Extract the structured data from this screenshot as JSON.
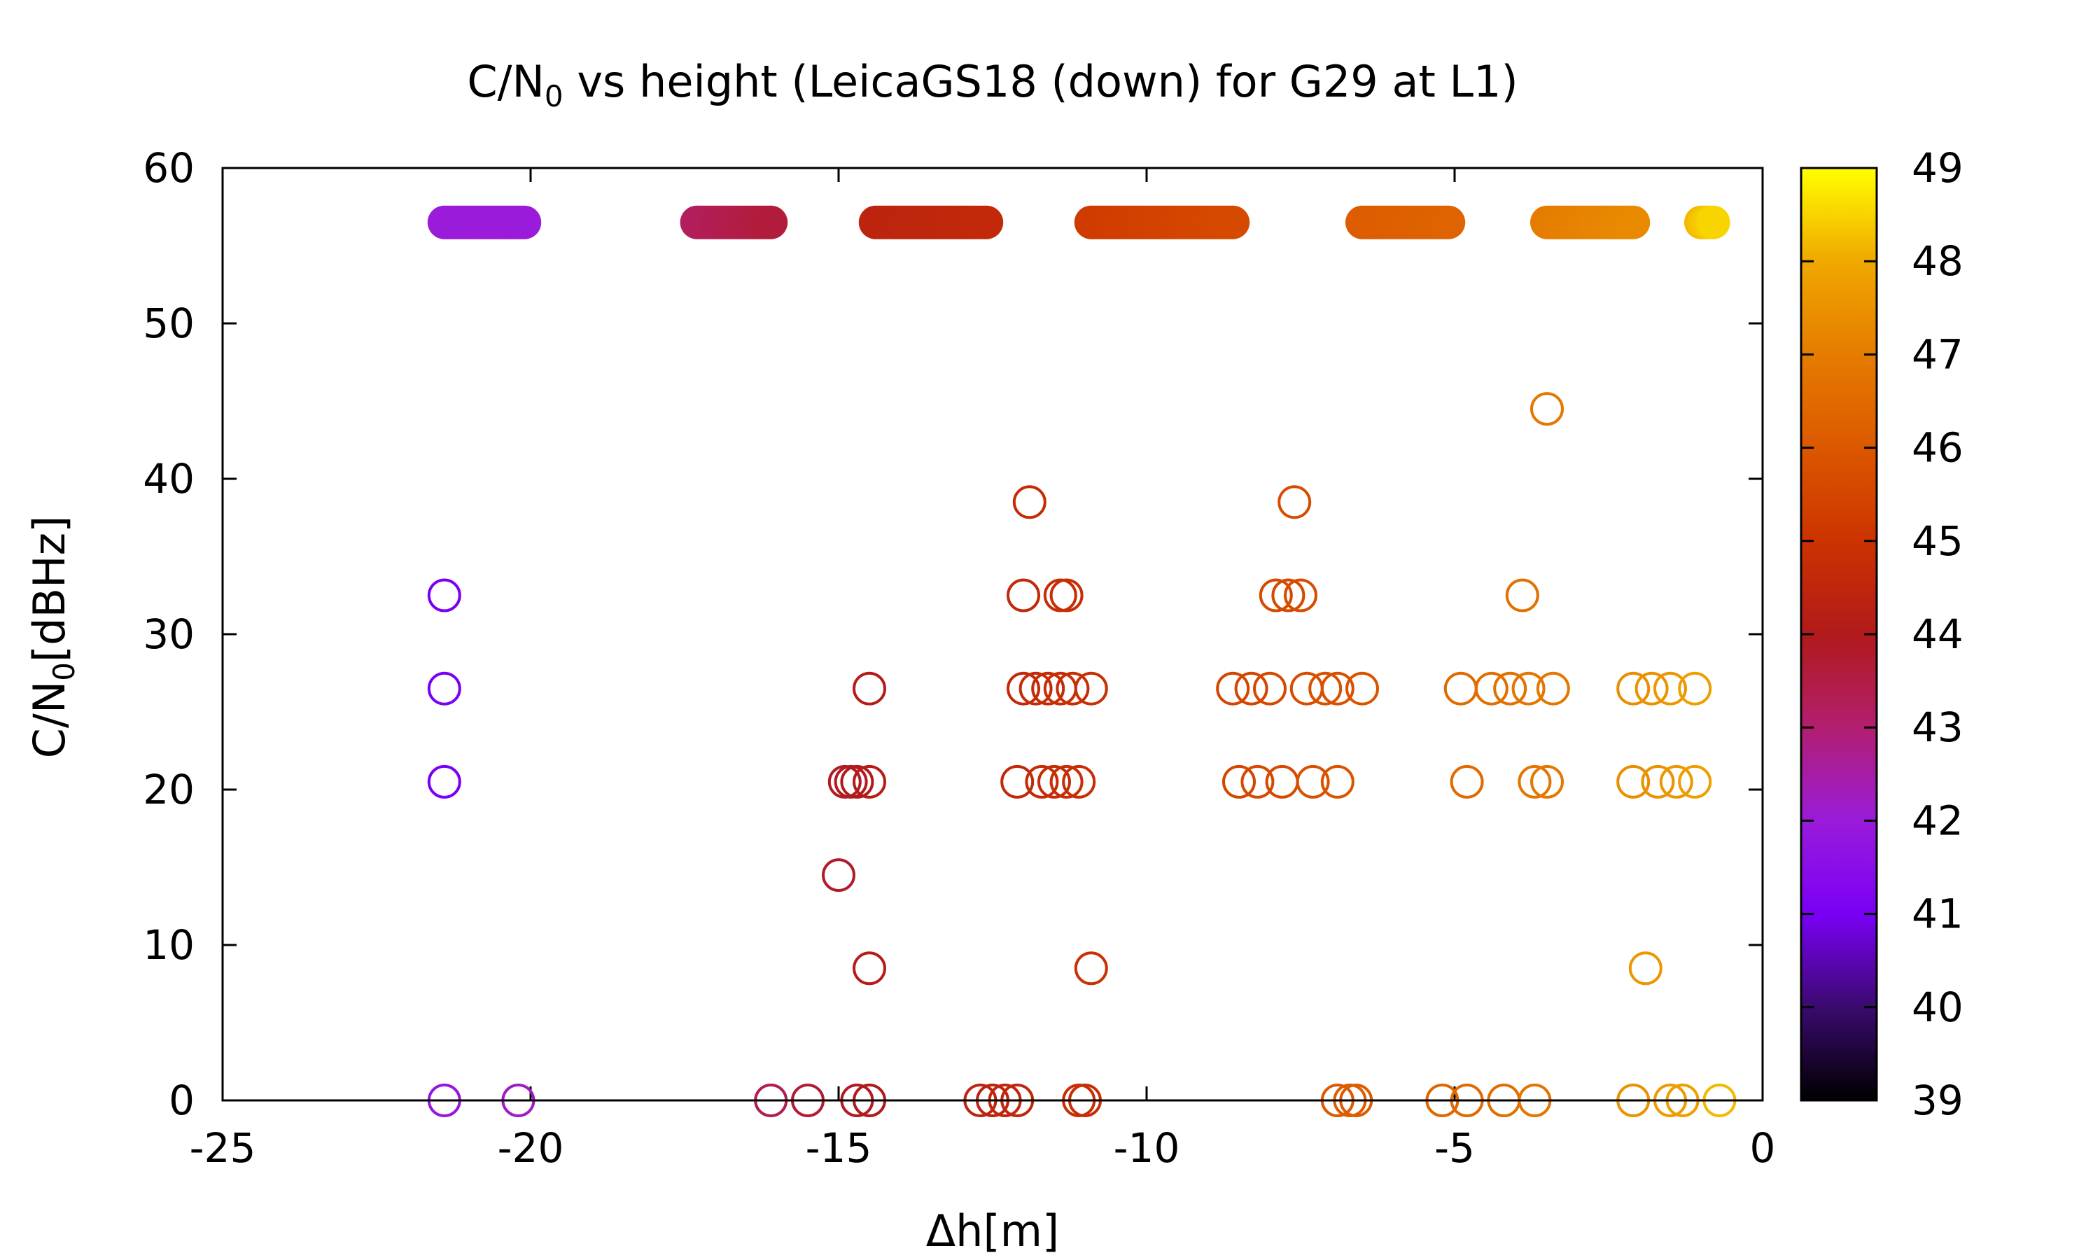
{
  "chart_data": {
    "type": "scatter",
    "title": "C/N",
    "title_sub": "0",
    "title_rest": " vs height (LeicaGS18 (down) for G29 at L1)",
    "xlabel": "Δh[m]",
    "ylabel": "C/N",
    "ylabel_sub": "0",
    "ylabel_rest": "[dBHz]",
    "xlim": [
      -25,
      0
    ],
    "ylim": [
      0,
      60
    ],
    "xticks": [
      {
        "v": -25,
        "label": "-25"
      },
      {
        "v": -20,
        "label": "-20"
      },
      {
        "v": -15,
        "label": "-15"
      },
      {
        "v": -10,
        "label": "-10"
      },
      {
        "v": -5,
        "label": "-5"
      },
      {
        "v": 0,
        "label": "0"
      }
    ],
    "yticks": [
      {
        "v": 0,
        "label": "0"
      },
      {
        "v": 10,
        "label": "10"
      },
      {
        "v": 20,
        "label": "20"
      },
      {
        "v": 30,
        "label": "30"
      },
      {
        "v": 40,
        "label": "40"
      },
      {
        "v": 50,
        "label": "50"
      },
      {
        "v": 60,
        "label": "60"
      }
    ],
    "colorbar": {
      "range": [
        39,
        49
      ],
      "ticks": [
        {
          "v": 39,
          "label": "39"
        },
        {
          "v": 40,
          "label": "40"
        },
        {
          "v": 41,
          "label": "41"
        },
        {
          "v": 42,
          "label": "42"
        },
        {
          "v": 43,
          "label": "43"
        },
        {
          "v": 44,
          "label": "44"
        },
        {
          "v": 45,
          "label": "45"
        },
        {
          "v": 46,
          "label": "46"
        },
        {
          "v": 47,
          "label": "47"
        },
        {
          "v": 48,
          "label": "48"
        },
        {
          "v": 49,
          "label": "49"
        }
      ],
      "palette": [
        "#000000",
        "#3a0a6e",
        "#7a00f5",
        "#9a1bd9",
        "#b21f6f",
        "#b11a1a",
        "#cc3300",
        "#dc5800",
        "#e57c00",
        "#f0a800",
        "#ffff00"
      ]
    },
    "series": [
      {
        "style": "filled-band",
        "y": 56.5,
        "bands": [
          {
            "x": [
              -21.4,
              -20.1
            ],
            "c": [
              42.0,
              42.0
            ]
          },
          {
            "x": [
              -17.3,
              -16.1
            ],
            "c": [
              43.2,
              43.6
            ]
          },
          {
            "x": [
              -14.4,
              -12.6
            ],
            "c": [
              44.4,
              44.6
            ]
          },
          {
            "x": [
              -10.9,
              -8.6
            ],
            "c": [
              45.2,
              45.6
            ]
          },
          {
            "x": [
              -6.5,
              -5.1
            ],
            "c": [
              46.1,
              46.3
            ]
          },
          {
            "x": [
              -3.5,
              -2.1
            ],
            "c": [
              47.0,
              47.3
            ]
          },
          {
            "x": [
              -1.0,
              -0.8
            ],
            "c": [
              48.2,
              48.5
            ]
          }
        ]
      },
      {
        "style": "open-circle",
        "points": [
          {
            "x": -21.4,
            "y": 32.5,
            "c": 41.0
          },
          {
            "x": -21.4,
            "y": 26.5,
            "c": 41.0
          },
          {
            "x": -21.4,
            "y": 20.5,
            "c": 41.0
          },
          {
            "x": -21.4,
            "y": 0,
            "c": 41.9
          },
          {
            "x": -20.2,
            "y": 0,
            "c": 42.2
          },
          {
            "x": -16.1,
            "y": 0,
            "c": 43.4
          },
          {
            "x": -15.5,
            "y": 0,
            "c": 43.7
          },
          {
            "x": -14.7,
            "y": 0,
            "c": 43.9
          },
          {
            "x": -14.5,
            "y": 0,
            "c": 44.0
          },
          {
            "x": -14.5,
            "y": 26.5,
            "c": 44.1
          },
          {
            "x": -14.9,
            "y": 20.5,
            "c": 43.9
          },
          {
            "x": -14.8,
            "y": 20.5,
            "c": 43.9
          },
          {
            "x": -14.7,
            "y": 20.5,
            "c": 44.0
          },
          {
            "x": -14.5,
            "y": 20.5,
            "c": 44.1
          },
          {
            "x": -15.0,
            "y": 14.5,
            "c": 43.8
          },
          {
            "x": -14.5,
            "y": 8.5,
            "c": 44.1
          },
          {
            "x": -12.7,
            "y": 0,
            "c": 44.4
          },
          {
            "x": -12.5,
            "y": 0,
            "c": 44.4
          },
          {
            "x": -12.3,
            "y": 0,
            "c": 44.5
          },
          {
            "x": -12.1,
            "y": 0,
            "c": 44.5
          },
          {
            "x": -11.1,
            "y": 0,
            "c": 44.8
          },
          {
            "x": -11.0,
            "y": 0,
            "c": 44.8
          },
          {
            "x": -11.9,
            "y": 38.5,
            "c": 44.7
          },
          {
            "x": -12.0,
            "y": 32.5,
            "c": 44.6
          },
          {
            "x": -11.4,
            "y": 32.5,
            "c": 44.8
          },
          {
            "x": -11.3,
            "y": 32.5,
            "c": 44.8
          },
          {
            "x": -12.0,
            "y": 26.5,
            "c": 44.6
          },
          {
            "x": -11.8,
            "y": 26.5,
            "c": 44.7
          },
          {
            "x": -11.6,
            "y": 26.5,
            "c": 44.7
          },
          {
            "x": -11.4,
            "y": 26.5,
            "c": 44.8
          },
          {
            "x": -11.2,
            "y": 26.5,
            "c": 44.8
          },
          {
            "x": -10.9,
            "y": 26.5,
            "c": 44.9
          },
          {
            "x": -12.1,
            "y": 20.5,
            "c": 44.6
          },
          {
            "x": -11.7,
            "y": 20.5,
            "c": 44.7
          },
          {
            "x": -11.5,
            "y": 20.5,
            "c": 44.7
          },
          {
            "x": -11.3,
            "y": 20.5,
            "c": 44.8
          },
          {
            "x": -11.1,
            "y": 20.5,
            "c": 44.8
          },
          {
            "x": -10.9,
            "y": 8.5,
            "c": 44.9
          },
          {
            "x": -7.6,
            "y": 38.5,
            "c": 45.7
          },
          {
            "x": -7.9,
            "y": 32.5,
            "c": 45.6
          },
          {
            "x": -7.7,
            "y": 32.5,
            "c": 45.6
          },
          {
            "x": -7.5,
            "y": 32.5,
            "c": 45.7
          },
          {
            "x": -8.6,
            "y": 26.5,
            "c": 45.5
          },
          {
            "x": -8.3,
            "y": 26.5,
            "c": 45.5
          },
          {
            "x": -8.0,
            "y": 26.5,
            "c": 45.6
          },
          {
            "x": -7.4,
            "y": 26.5,
            "c": 45.7
          },
          {
            "x": -7.1,
            "y": 26.5,
            "c": 45.8
          },
          {
            "x": -6.9,
            "y": 26.5,
            "c": 45.8
          },
          {
            "x": -6.5,
            "y": 26.5,
            "c": 45.9
          },
          {
            "x": -8.5,
            "y": 20.5,
            "c": 45.5
          },
          {
            "x": -8.2,
            "y": 20.5,
            "c": 45.6
          },
          {
            "x": -7.8,
            "y": 20.5,
            "c": 45.6
          },
          {
            "x": -7.3,
            "y": 20.5,
            "c": 45.8
          },
          {
            "x": -6.9,
            "y": 20.5,
            "c": 45.9
          },
          {
            "x": -6.9,
            "y": 0,
            "c": 46.0
          },
          {
            "x": -6.7,
            "y": 0,
            "c": 46.1
          },
          {
            "x": -6.6,
            "y": 0,
            "c": 46.1
          },
          {
            "x": -5.2,
            "y": 0,
            "c": 46.4
          },
          {
            "x": -4.8,
            "y": 0,
            "c": 46.5
          },
          {
            "x": -4.2,
            "y": 0,
            "c": 46.6
          },
          {
            "x": -3.7,
            "y": 0,
            "c": 46.8
          },
          {
            "x": -3.5,
            "y": 44.5,
            "c": 46.9
          },
          {
            "x": -3.9,
            "y": 32.5,
            "c": 46.7
          },
          {
            "x": -4.9,
            "y": 26.5,
            "c": 46.5
          },
          {
            "x": -4.4,
            "y": 26.5,
            "c": 46.6
          },
          {
            "x": -4.1,
            "y": 26.5,
            "c": 46.7
          },
          {
            "x": -3.8,
            "y": 26.5,
            "c": 46.8
          },
          {
            "x": -3.4,
            "y": 26.5,
            "c": 46.9
          },
          {
            "x": -4.8,
            "y": 20.5,
            "c": 46.5
          },
          {
            "x": -3.7,
            "y": 20.5,
            "c": 46.8
          },
          {
            "x": -3.5,
            "y": 20.5,
            "c": 46.9
          },
          {
            "x": -2.1,
            "y": 26.5,
            "c": 47.4
          },
          {
            "x": -1.8,
            "y": 26.5,
            "c": 47.5
          },
          {
            "x": -1.5,
            "y": 26.5,
            "c": 47.6
          },
          {
            "x": -1.1,
            "y": 26.5,
            "c": 47.8
          },
          {
            "x": -2.1,
            "y": 20.5,
            "c": 47.4
          },
          {
            "x": -1.7,
            "y": 20.5,
            "c": 47.5
          },
          {
            "x": -1.4,
            "y": 20.5,
            "c": 47.6
          },
          {
            "x": -1.1,
            "y": 20.5,
            "c": 47.8
          },
          {
            "x": -1.9,
            "y": 8.5,
            "c": 47.6
          },
          {
            "x": -2.1,
            "y": 0,
            "c": 47.5
          },
          {
            "x": -1.5,
            "y": 0,
            "c": 47.7
          },
          {
            "x": -1.3,
            "y": 0,
            "c": 47.8
          },
          {
            "x": -0.7,
            "y": 0,
            "c": 48.2
          }
        ]
      }
    ]
  }
}
